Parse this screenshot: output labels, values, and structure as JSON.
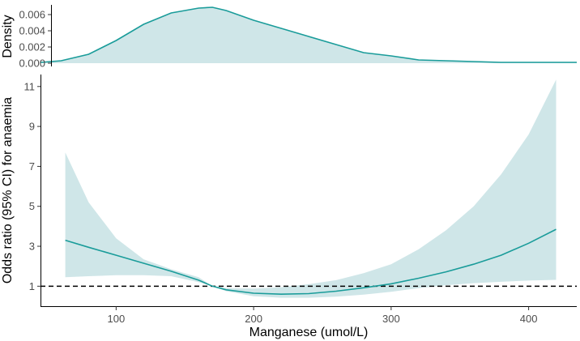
{
  "colors": {
    "curve": "#1a9c9a",
    "band": "#cfe6e8",
    "density_fill": "#cfe6e8",
    "reference": "#000000"
  },
  "chart_data": [
    {
      "type": "area",
      "name": "density",
      "ylabel": "Density",
      "xlim": [
        45,
        435
      ],
      "ylim": [
        0,
        0.0072
      ],
      "yticks": [
        0.0,
        0.002,
        0.004,
        0.006
      ],
      "ytick_labels": [
        "0.000",
        "0.002",
        "0.004",
        "0.006"
      ],
      "x": [
        45,
        60,
        80,
        100,
        120,
        140,
        160,
        170,
        180,
        200,
        220,
        240,
        260,
        280,
        300,
        320,
        340,
        360,
        380,
        400,
        420,
        435
      ],
      "y": [
        0.0001,
        0.0003,
        0.0011,
        0.0028,
        0.0048,
        0.0062,
        0.0068,
        0.0069,
        0.0065,
        0.0053,
        0.0043,
        0.0033,
        0.0023,
        0.0013,
        0.0009,
        0.0004,
        0.0003,
        0.0002,
        0.0001,
        0.0001,
        0.0001,
        0.0001
      ]
    },
    {
      "type": "line",
      "name": "odds-ratio",
      "xlabel": "Manganese (umol/L)",
      "ylabel": "Odds ratio (95% CI) for anaemia",
      "xlim": [
        45,
        435
      ],
      "ylim": [
        0,
        11.6
      ],
      "xticks": [
        100,
        200,
        300,
        400
      ],
      "xtick_labels": [
        "100",
        "200",
        "300",
        "400"
      ],
      "yticks": [
        1,
        3,
        5,
        7,
        9,
        11
      ],
      "ytick_labels": [
        "1",
        "3",
        "5",
        "7",
        "9",
        "11"
      ],
      "reference_line": 1,
      "x": [
        63,
        80,
        100,
        120,
        140,
        160,
        170,
        180,
        200,
        220,
        240,
        260,
        280,
        300,
        320,
        340,
        360,
        380,
        400,
        420
      ],
      "or": [
        3.3,
        2.95,
        2.55,
        2.15,
        1.75,
        1.3,
        1.0,
        0.82,
        0.65,
        0.6,
        0.63,
        0.75,
        0.92,
        1.12,
        1.4,
        1.72,
        2.1,
        2.55,
        3.15,
        3.85
      ],
      "lower": [
        1.45,
        1.5,
        1.55,
        1.55,
        1.5,
        1.2,
        1.0,
        0.75,
        0.5,
        0.42,
        0.42,
        0.48,
        0.58,
        0.72,
        0.9,
        1.05,
        1.15,
        1.22,
        1.28,
        1.32
      ],
      "upper": [
        7.7,
        5.2,
        3.4,
        2.35,
        1.85,
        1.45,
        1.0,
        0.9,
        0.88,
        0.95,
        1.1,
        1.3,
        1.65,
        2.1,
        2.85,
        3.8,
        5.0,
        6.6,
        8.6,
        11.35
      ]
    }
  ]
}
